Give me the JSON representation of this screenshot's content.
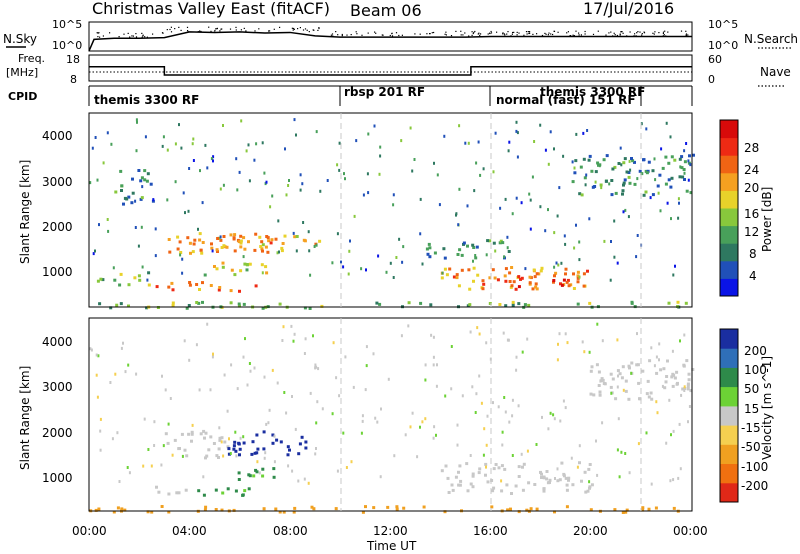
{
  "header": {
    "title": "Christmas Valley East (fitACF)",
    "beam": "Beam 06",
    "date": "17/Jul/2016"
  },
  "nsky": {
    "label": "N.Sky",
    "ticks_left": [
      "10^5",
      "10^0"
    ],
    "ticks_right": [
      "10^5",
      "10^0"
    ],
    "right_label": "N.Search"
  },
  "freq": {
    "label_top": "Freq.",
    "label_unit": "[MHz]",
    "ticks_left": [
      "18",
      "8"
    ],
    "ticks_right": [
      "60",
      "0"
    ],
    "right_label": "Nave"
  },
  "cpid": {
    "label": "CPID",
    "segments": [
      {
        "start_hour": 0,
        "end_hour": 10,
        "text": "themis 3300 RF"
      },
      {
        "start_hour": 10,
        "end_hour": 16,
        "text": "rbsp 201 RF"
      },
      {
        "start_hour": 16,
        "end_hour": 22,
        "text": "normal (fast) 151 RF"
      },
      {
        "start_hour": 18.5,
        "end_hour": 24,
        "text": "themis 3300 RF"
      }
    ]
  },
  "axes": {
    "ylabel": "Slant Range [km]",
    "y_ticks": [
      "4000",
      "3000",
      "2000",
      "1000"
    ],
    "x_ticks": [
      "00:00",
      "04:00",
      "08:00",
      "12:00",
      "16:00",
      "20:00",
      "00:00"
    ],
    "xlabel": "Time UT"
  },
  "colorbars": {
    "power": {
      "label": "Power [dB]",
      "ticks": [
        "28",
        "24",
        "20",
        "16",
        "12",
        "8",
        "4"
      ],
      "colors": [
        "#0a14e6",
        "#2050b8",
        "#2e7860",
        "#48a05a",
        "#88c83c",
        "#e8d22a",
        "#f5a020",
        "#f06414",
        "#ee2a14",
        "#d80a0a"
      ]
    },
    "velocity": {
      "label": "Velocity [m s^-1]",
      "ticks": [
        "200",
        "100",
        "50",
        "15",
        "-15",
        "-50",
        "-100",
        "-200"
      ],
      "colors": [
        "#1a2ea0",
        "#2f6fb8",
        "#2e8a4a",
        "#6cd235",
        "#c8c8c8",
        "#f5d050",
        "#f0a020",
        "#f07010",
        "#e02818"
      ]
    }
  },
  "chart_data": [
    {
      "type": "line",
      "name": "N.Sky noise",
      "x": [
        0,
        0.2,
        1,
        2,
        3,
        4,
        5,
        6,
        7,
        8,
        9,
        10,
        11,
        12,
        13,
        14,
        15,
        16,
        17,
        18,
        19,
        20,
        21,
        22,
        23,
        24
      ],
      "y_log10": [
        0,
        2.0,
        2.2,
        2.2,
        2.3,
        3.3,
        3.2,
        3.3,
        3.1,
        3.2,
        2.6,
        2.4,
        2.4,
        2.4,
        2.4,
        2.4,
        2.4,
        2.5,
        2.5,
        2.5,
        2.5,
        2.5,
        2.5,
        2.5,
        2.5,
        2.5
      ],
      "ylim": [
        "10^0",
        "10^5"
      ]
    },
    {
      "type": "line",
      "name": "Frequency",
      "x": [
        0,
        3,
        3,
        15.2,
        15.2,
        24
      ],
      "y": [
        13.5,
        13.5,
        10.3,
        10.3,
        13.5,
        13.5
      ],
      "ylim": [
        8,
        18
      ]
    },
    {
      "type": "heatmap",
      "name": "Power",
      "x_range_hours": [
        0,
        24
      ],
      "y_range_km": [
        180,
        4500
      ],
      "blobs": [
        {
          "t0": 3.0,
          "t1": 7.7,
          "r0": 1350,
          "r1": 1850,
          "power_db": 22
        },
        {
          "t0": 5.0,
          "t1": 9.2,
          "r0": 1450,
          "r1": 1800,
          "power_db": 20
        },
        {
          "t0": 2.6,
          "t1": 6.6,
          "r0": 560,
          "r1": 760,
          "power_db": 24
        },
        {
          "t0": 4.2,
          "t1": 7.2,
          "r0": 900,
          "r1": 1200,
          "power_db": 18
        },
        {
          "t0": 0.3,
          "t1": 2.5,
          "r0": 700,
          "r1": 1000,
          "power_db": 14
        },
        {
          "t0": 1.0,
          "t1": 2.6,
          "r0": 2500,
          "r1": 3300,
          "power_db": 10
        },
        {
          "t0": 13.4,
          "t1": 17.0,
          "r0": 1300,
          "r1": 1700,
          "power_db": 12
        },
        {
          "t0": 14.0,
          "t1": 20.0,
          "r0": 600,
          "r1": 1100,
          "power_db": 22
        },
        {
          "t0": 15.5,
          "t1": 19.5,
          "r0": 650,
          "r1": 950,
          "power_db": 26
        },
        {
          "t0": 19.2,
          "t1": 24.0,
          "r0": 2700,
          "r1": 3600,
          "power_db": 10
        },
        {
          "t0": 0.0,
          "t1": 24.0,
          "r0": 180,
          "r1": 320,
          "power_db": 14
        }
      ]
    },
    {
      "type": "heatmap",
      "name": "Velocity",
      "x_range_hours": [
        0,
        24
      ],
      "y_range_km": [
        180,
        4500
      ],
      "blobs": [
        {
          "t0": 3.0,
          "t1": 5.5,
          "r0": 1350,
          "r1": 2000,
          "velocity": 0
        },
        {
          "t0": 5.5,
          "t1": 8.6,
          "r0": 1450,
          "r1": 2000,
          "velocity": 200
        },
        {
          "t0": 2.6,
          "t1": 4.2,
          "r0": 560,
          "r1": 760,
          "velocity": 0
        },
        {
          "t0": 4.2,
          "t1": 6.8,
          "r0": 550,
          "r1": 760,
          "velocity": 40
        },
        {
          "t0": 5.6,
          "t1": 7.4,
          "r0": 850,
          "r1": 1200,
          "velocity": 40
        },
        {
          "t0": 14.0,
          "t1": 20.0,
          "r0": 600,
          "r1": 1300,
          "velocity": 0
        },
        {
          "t0": 19.8,
          "t1": 24.0,
          "r0": 2700,
          "r1": 3600,
          "velocity": 0
        },
        {
          "t0": 0.0,
          "t1": 24.0,
          "r0": 180,
          "r1": 320,
          "velocity": -50
        }
      ]
    }
  ]
}
